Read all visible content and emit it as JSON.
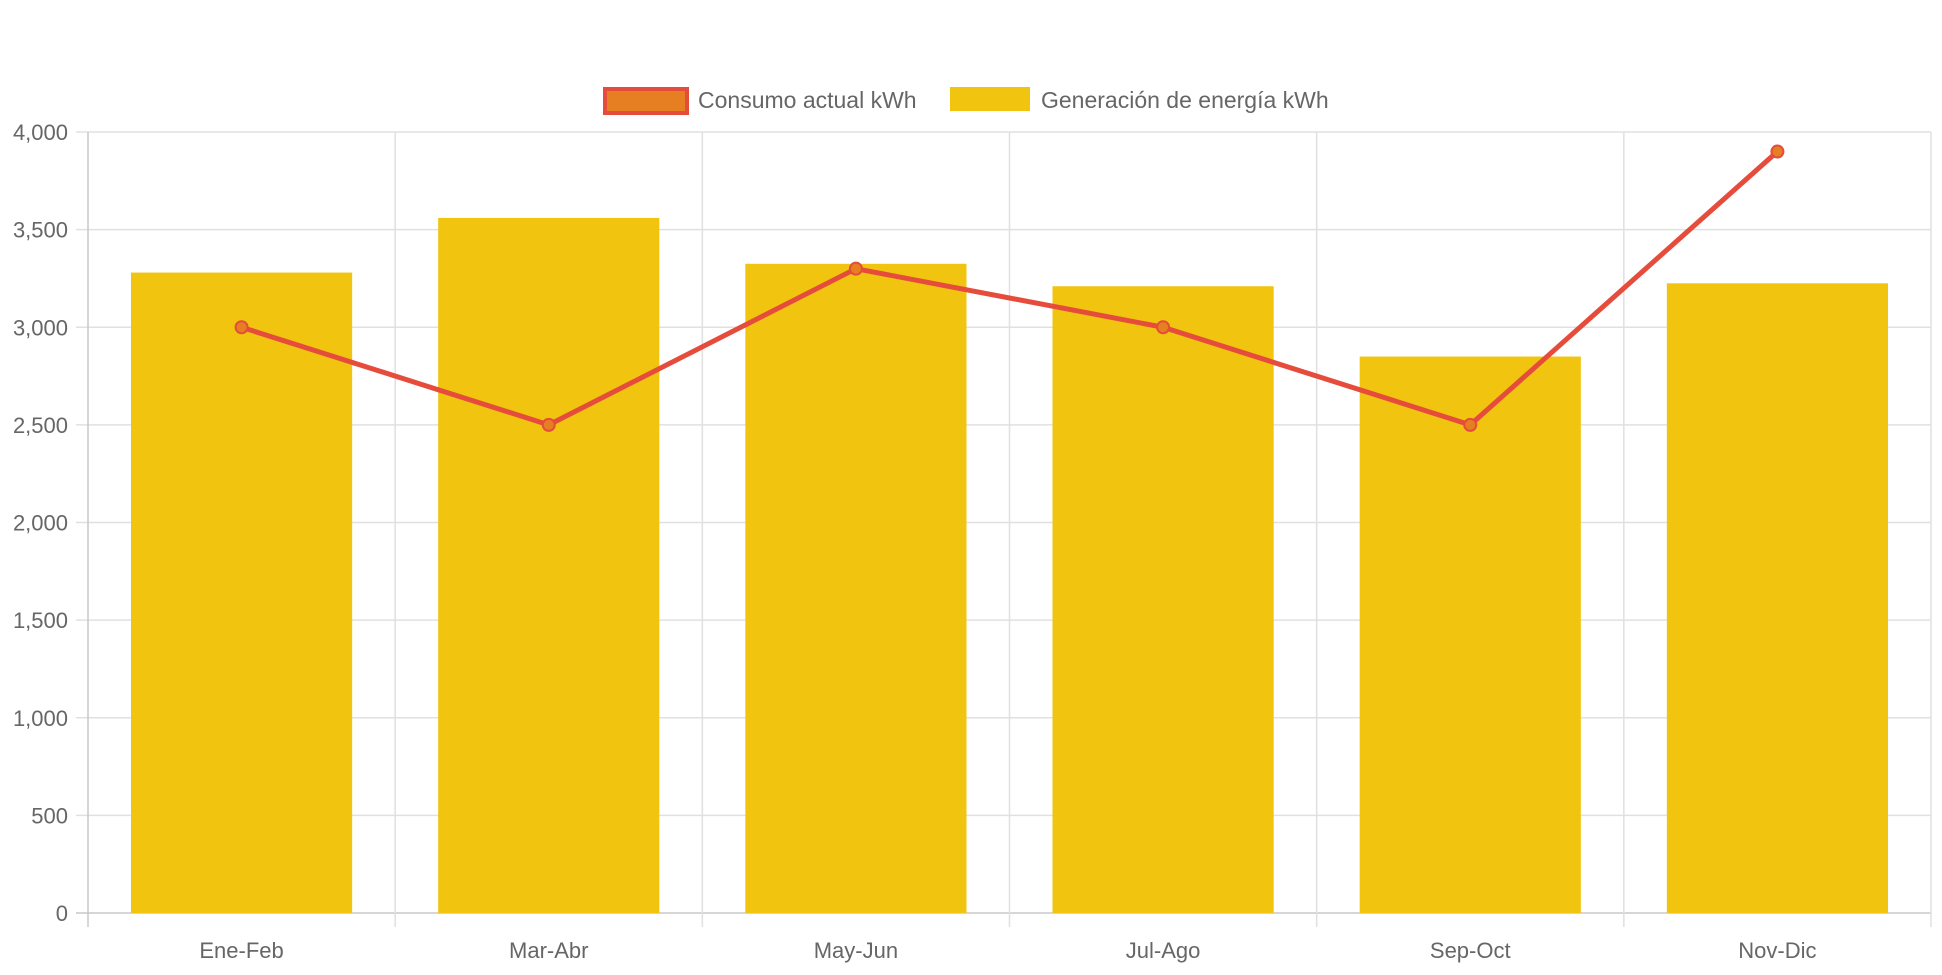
{
  "chart_data": {
    "type": "bar",
    "title": "",
    "xlabel": "",
    "ylabel": "",
    "categories": [
      "Ene-Feb",
      "Mar-Abr",
      "May-Jun",
      "Jul-Ago",
      "Sep-Oct",
      "Nov-Dic"
    ],
    "ylim": [
      0,
      4000
    ],
    "yticks": [
      0,
      500,
      1000,
      1500,
      2000,
      2500,
      3000,
      3500,
      4000
    ],
    "ytick_labels": [
      "0",
      "500",
      "1,000",
      "1,500",
      "2,000",
      "2,500",
      "3,000",
      "3,500",
      "4,000"
    ],
    "grid": true,
    "legend_position": "top",
    "series": [
      {
        "name": "Consumo actual kWh",
        "type": "line",
        "values": [
          3000,
          2500,
          3300,
          3000,
          2500,
          3900
        ],
        "color": "#e64c3c",
        "point_color": "#e67e22"
      },
      {
        "name": "Generación de energía kWh",
        "type": "bar",
        "values": [
          3280,
          3560,
          3325,
          3210,
          2850,
          3225
        ],
        "color": "#f1c40f"
      }
    ]
  }
}
